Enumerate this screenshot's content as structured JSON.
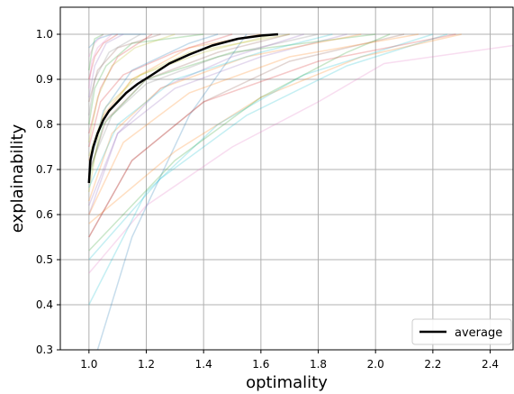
{
  "chart_data": {
    "type": "line",
    "title": "",
    "xlabel": "optimality",
    "ylabel": "explainability",
    "xlim": [
      0.9,
      2.48
    ],
    "ylim": [
      0.3,
      1.06
    ],
    "x_ticks": [
      1.0,
      1.2,
      1.4,
      1.6,
      1.8,
      2.0,
      2.2,
      2.4
    ],
    "x_tick_labels": [
      "1.0",
      "1.2",
      "1.4",
      "1.6",
      "1.8",
      "2.0",
      "2.2",
      "2.4"
    ],
    "y_ticks": [
      0.3,
      0.4,
      0.5,
      0.6,
      0.7,
      0.8,
      0.9,
      1.0
    ],
    "y_tick_labels": [
      "0.3",
      "0.4",
      "0.5",
      "0.6",
      "0.7",
      "0.8",
      "0.9",
      "1.0"
    ],
    "grid": true,
    "legend": {
      "position": "lower-right",
      "entries": [
        "average"
      ]
    },
    "series": [
      {
        "name": "average",
        "color": "#000000",
        "x": [
          1.0,
          1.005,
          1.015,
          1.03,
          1.05,
          1.07,
          1.1,
          1.13,
          1.17,
          1.22,
          1.28,
          1.35,
          1.43,
          1.52,
          1.6,
          1.66
        ],
        "y": [
          0.67,
          0.72,
          0.75,
          0.78,
          0.81,
          0.83,
          0.85,
          0.87,
          0.89,
          0.91,
          0.935,
          0.955,
          0.975,
          0.99,
          0.997,
          1.0
        ]
      }
    ],
    "background_series": [
      {
        "color": "#1f77b4",
        "x": [
          1.0,
          1.03,
          1.08,
          1.2
        ],
        "y": [
          0.97,
          0.99,
          1.0,
          1.0
        ]
      },
      {
        "color": "#ff7f0e",
        "x": [
          1.0,
          1.05,
          1.15,
          1.35,
          1.6
        ],
        "y": [
          0.72,
          0.82,
          0.9,
          0.97,
          1.0
        ]
      },
      {
        "color": "#2ca02c",
        "x": [
          1.0,
          1.02,
          1.06,
          1.15,
          1.4
        ],
        "y": [
          0.8,
          0.88,
          0.93,
          0.98,
          1.0
        ]
      },
      {
        "color": "#d62728",
        "x": [
          1.0,
          1.04,
          1.12,
          1.3,
          1.5
        ],
        "y": [
          0.75,
          0.85,
          0.91,
          0.96,
          1.0
        ]
      },
      {
        "color": "#9467bd",
        "x": [
          1.0,
          1.1,
          1.3,
          1.6,
          1.9
        ],
        "y": [
          0.6,
          0.78,
          0.88,
          0.95,
          1.0
        ]
      },
      {
        "color": "#8c564b",
        "x": [
          1.0,
          1.03,
          1.1,
          1.25
        ],
        "y": [
          0.85,
          0.92,
          0.97,
          1.0
        ]
      },
      {
        "color": "#e377c2",
        "x": [
          1.0,
          1.2,
          1.5,
          1.8,
          2.03,
          2.48
        ],
        "y": [
          0.47,
          0.62,
          0.75,
          0.85,
          0.935,
          0.975
        ]
      },
      {
        "color": "#7f7f7f",
        "x": [
          1.0,
          1.08,
          1.2,
          1.45,
          1.8
        ],
        "y": [
          0.7,
          0.82,
          0.89,
          0.95,
          1.0
        ]
      },
      {
        "color": "#bcbd22",
        "x": [
          1.0,
          1.04,
          1.15,
          1.35,
          1.7
        ],
        "y": [
          0.65,
          0.8,
          0.9,
          0.96,
          1.0
        ]
      },
      {
        "color": "#17becf",
        "x": [
          1.0,
          1.25,
          1.55,
          1.9,
          2.25
        ],
        "y": [
          0.5,
          0.68,
          0.82,
          0.93,
          1.0
        ]
      },
      {
        "color": "#1f77b4",
        "x": [
          1.03,
          1.15,
          1.35,
          1.55
        ],
        "y": [
          0.3,
          0.55,
          0.82,
          1.0
        ]
      },
      {
        "color": "#ff7f0e",
        "x": [
          1.0,
          1.3,
          1.6,
          1.95,
          2.3
        ],
        "y": [
          0.58,
          0.74,
          0.86,
          0.95,
          1.0
        ]
      },
      {
        "color": "#2ca02c",
        "x": [
          1.0,
          1.05,
          1.2,
          1.5,
          2.0
        ],
        "y": [
          0.68,
          0.8,
          0.9,
          0.96,
          1.0
        ]
      },
      {
        "color": "#d62728",
        "x": [
          1.0,
          1.02,
          1.05,
          1.1
        ],
        "y": [
          0.9,
          0.95,
          0.98,
          1.0
        ]
      },
      {
        "color": "#9467bd",
        "x": [
          1.0,
          1.1,
          1.25,
          1.5,
          1.75
        ],
        "y": [
          0.62,
          0.78,
          0.88,
          0.95,
          1.0
        ]
      },
      {
        "color": "#8c564b",
        "x": [
          1.0,
          1.15,
          1.4,
          1.7,
          2.1
        ],
        "y": [
          0.55,
          0.72,
          0.85,
          0.94,
          1.0
        ]
      },
      {
        "color": "#e377c2",
        "x": [
          1.0,
          1.01,
          1.03,
          1.08
        ],
        "y": [
          0.88,
          0.94,
          0.97,
          1.0
        ]
      },
      {
        "color": "#17becf",
        "x": [
          1.0,
          1.2,
          1.45,
          1.75,
          2.2
        ],
        "y": [
          0.4,
          0.65,
          0.8,
          0.91,
          1.0
        ]
      },
      {
        "color": "#bcbd22",
        "x": [
          1.0,
          1.06,
          1.18,
          1.4,
          1.65
        ],
        "y": [
          0.73,
          0.84,
          0.91,
          0.96,
          1.0
        ]
      },
      {
        "color": "#7f7f7f",
        "x": [
          1.0,
          1.02,
          1.07,
          1.18
        ],
        "y": [
          0.82,
          0.9,
          0.96,
          1.0
        ]
      },
      {
        "color": "#ff7f0e",
        "x": [
          1.0,
          1.08,
          1.25,
          1.55,
          1.95
        ],
        "y": [
          0.63,
          0.78,
          0.88,
          0.95,
          1.0
        ]
      },
      {
        "color": "#2ca02c",
        "x": [
          1.0,
          1.3,
          1.6,
          1.9,
          2.05
        ],
        "y": [
          0.52,
          0.72,
          0.86,
          0.96,
          1.0
        ]
      },
      {
        "color": "#d62728",
        "x": [
          1.0,
          1.04,
          1.1,
          1.22
        ],
        "y": [
          0.78,
          0.88,
          0.95,
          1.0
        ]
      },
      {
        "color": "#1f77b4",
        "x": [
          1.0,
          1.05,
          1.15,
          1.35,
          1.45
        ],
        "y": [
          0.7,
          0.83,
          0.92,
          0.98,
          1.0
        ]
      },
      {
        "color": "#9467bd",
        "x": [
          1.0,
          1.02,
          1.06,
          1.12
        ],
        "y": [
          0.86,
          0.93,
          0.98,
          1.0
        ]
      },
      {
        "color": "#e377c2",
        "x": [
          1.0,
          1.02,
          1.05
        ],
        "y": [
          0.95,
          0.98,
          1.0
        ]
      },
      {
        "color": "#17becf",
        "x": [
          1.0,
          1.1,
          1.3,
          1.6,
          1.85
        ],
        "y": [
          0.66,
          0.8,
          0.9,
          0.96,
          1.0
        ]
      },
      {
        "color": "#ff7f0e",
        "x": [
          1.0,
          1.12,
          1.35,
          1.7,
          2.15
        ],
        "y": [
          0.6,
          0.76,
          0.87,
          0.95,
          1.0
        ]
      },
      {
        "color": "#bcbd22",
        "x": [
          1.0,
          1.03,
          1.08,
          1.16,
          1.3
        ],
        "y": [
          0.76,
          0.86,
          0.93,
          0.97,
          1.0
        ]
      },
      {
        "color": "#2ca02c",
        "x": [
          1.0,
          1.01,
          1.02,
          1.05
        ],
        "y": [
          0.92,
          0.96,
          0.99,
          1.0
        ]
      },
      {
        "color": "#d62728",
        "x": [
          1.0,
          1.15,
          1.4,
          1.8,
          2.28
        ],
        "y": [
          0.55,
          0.72,
          0.85,
          0.94,
          1.0
        ]
      },
      {
        "color": "#8c564b",
        "x": [
          1.0,
          1.06,
          1.2,
          1.45,
          1.7
        ],
        "y": [
          0.69,
          0.81,
          0.9,
          0.96,
          1.0
        ]
      }
    ]
  }
}
